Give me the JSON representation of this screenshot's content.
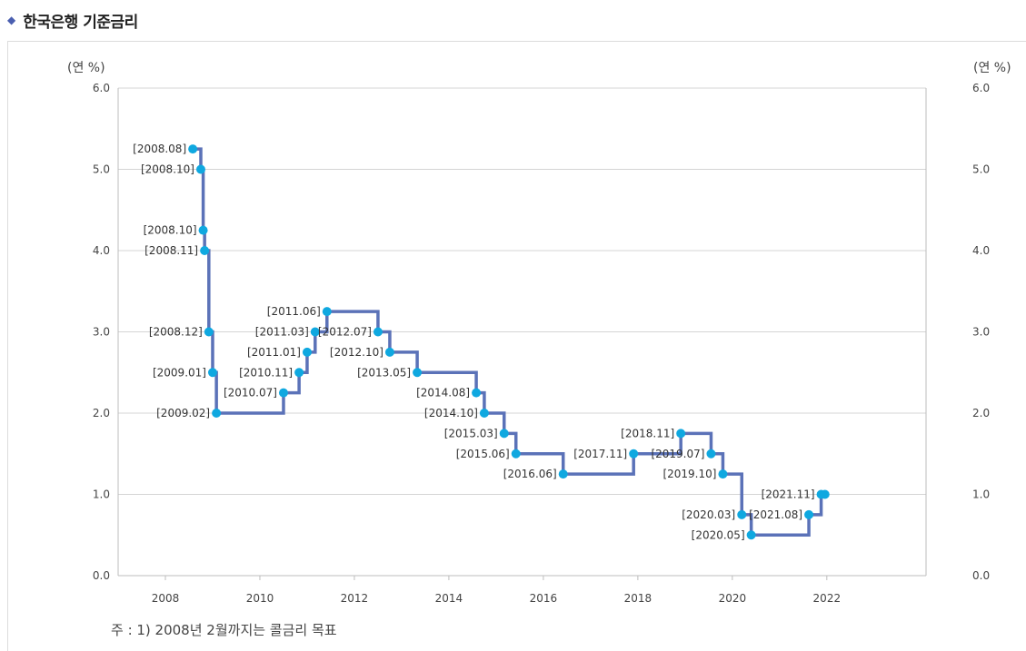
{
  "header": {
    "title": "한국은행 기준금리",
    "marker_icon": "diamond-icon"
  },
  "units": {
    "left": "(연 %)",
    "right": "(연 %)"
  },
  "note": "주 : 1) 2008년 2월까지는 콜금리 목표",
  "colors": {
    "line": "#5b72b8",
    "marker": "#0fa8e0",
    "grid": "#d4d4d4",
    "diamond": "#4a5fb0"
  },
  "chart_data": {
    "type": "line",
    "step": true,
    "x_unit": "year",
    "xlim": [
      2007.0,
      2024.1
    ],
    "ylim": [
      0,
      6
    ],
    "x_ticks": [
      "2008",
      "2010",
      "2012",
      "2014",
      "2016",
      "2018",
      "2020",
      "2022"
    ],
    "y_ticks_left": [
      "0.0",
      "1.0",
      "2.0",
      "3.0",
      "4.0",
      "5.0",
      "6.0"
    ],
    "y_ticks_right": [
      "0.0",
      "1.0",
      "2.0",
      "3.0",
      "4.0",
      "5.0",
      "6.0"
    ],
    "grid": "horizontal",
    "series": [
      {
        "points": [
          {
            "label": "[2008.08]",
            "x": 2008.58,
            "y": 5.25,
            "label_side": "left"
          },
          {
            "label": "[2008.10]",
            "x": 2008.75,
            "y": 5.0,
            "label_side": "left"
          },
          {
            "label": "[2008.10]",
            "x": 2008.8,
            "y": 4.25,
            "label_side": "left"
          },
          {
            "label": "[2008.11]",
            "x": 2008.83,
            "y": 4.0,
            "label_side": "left"
          },
          {
            "label": "[2008.12]",
            "x": 2008.92,
            "y": 3.0,
            "label_side": "left"
          },
          {
            "label": "[2009.01]",
            "x": 2009.0,
            "y": 2.5,
            "label_side": "left"
          },
          {
            "label": "[2009.02]",
            "x": 2009.08,
            "y": 2.0,
            "label_side": "left"
          },
          {
            "label": "[2010.07]",
            "x": 2010.5,
            "y": 2.25,
            "label_side": "left"
          },
          {
            "label": "[2010.11]",
            "x": 2010.83,
            "y": 2.5,
            "label_side": "left"
          },
          {
            "label": "[2011.01]",
            "x": 2011.0,
            "y": 2.75,
            "label_side": "left"
          },
          {
            "label": "[2011.03]",
            "x": 2011.17,
            "y": 3.0,
            "label_side": "left"
          },
          {
            "label": "[2011.06]",
            "x": 2011.42,
            "y": 3.25,
            "label_side": "left"
          },
          {
            "label": "[2012.07]",
            "x": 2012.5,
            "y": 3.0,
            "label_side": "left"
          },
          {
            "label": "[2012.10]",
            "x": 2012.75,
            "y": 2.75,
            "label_side": "left"
          },
          {
            "label": "[2013.05]",
            "x": 2013.33,
            "y": 2.5,
            "label_side": "left"
          },
          {
            "label": "[2014.08]",
            "x": 2014.58,
            "y": 2.25,
            "label_side": "left"
          },
          {
            "label": "[2014.10]",
            "x": 2014.75,
            "y": 2.0,
            "label_side": "left"
          },
          {
            "label": "[2015.03]",
            "x": 2015.17,
            "y": 1.75,
            "label_side": "left"
          },
          {
            "label": "[2015.06]",
            "x": 2015.42,
            "y": 1.5,
            "label_side": "left"
          },
          {
            "label": "[2016.06]",
            "x": 2016.42,
            "y": 1.25,
            "label_side": "left"
          },
          {
            "label": "[2017.11]",
            "x": 2017.91,
            "y": 1.5,
            "label_side": "left"
          },
          {
            "label": "[2018.11]",
            "x": 2018.91,
            "y": 1.75,
            "label_side": "left"
          },
          {
            "label": "[2019.07]",
            "x": 2019.55,
            "y": 1.5,
            "label_side": "left"
          },
          {
            "label": "[2019.10]",
            "x": 2019.8,
            "y": 1.25,
            "label_side": "left"
          },
          {
            "label": "[2020.03]",
            "x": 2020.2,
            "y": 0.75,
            "label_side": "left"
          },
          {
            "label": "[2020.05]",
            "x": 2020.4,
            "y": 0.5,
            "label_side": "left"
          },
          {
            "label": "[2021.08]",
            "x": 2021.62,
            "y": 0.75,
            "label_side": "left"
          },
          {
            "label": "[2021.11]",
            "x": 2021.88,
            "y": 1.0,
            "label_side": "left"
          },
          {
            "label": "",
            "x": 2021.96,
            "y": 1.0,
            "label_side": "none"
          }
        ]
      }
    ]
  }
}
